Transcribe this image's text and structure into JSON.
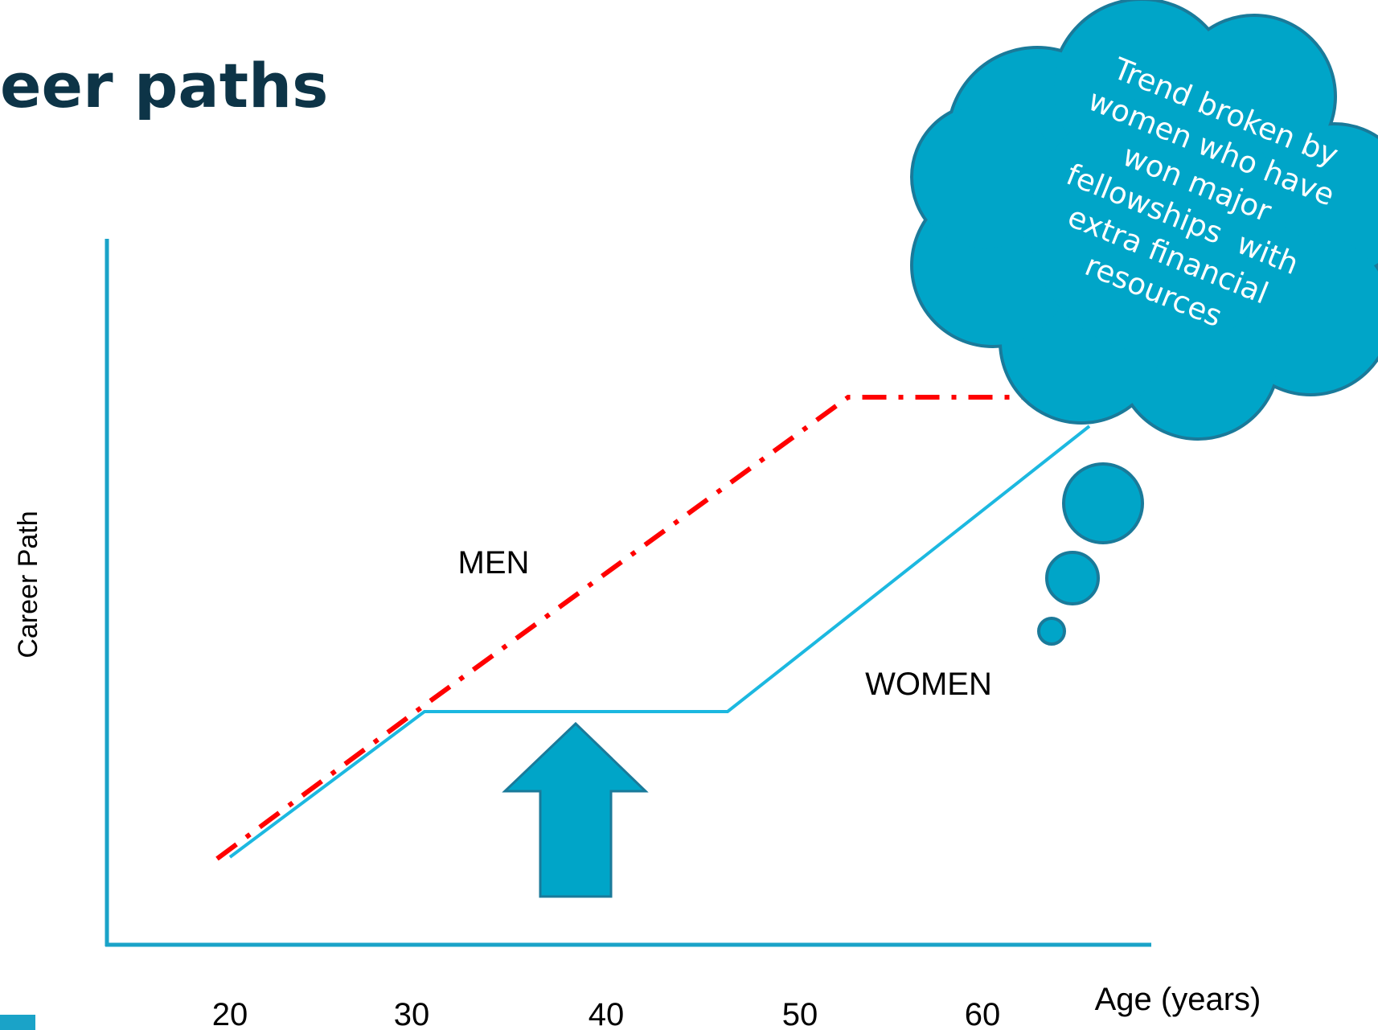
{
  "header": {
    "title": "eer paths"
  },
  "diagram": {
    "y_axis_label": "Career Path",
    "x_axis_label": "Age (years)",
    "x_ticks": [
      "20",
      "30",
      "40",
      "50",
      "60"
    ],
    "men_label": "MEN",
    "women_label": "WOMEN",
    "callout": {
      "lines": [
        "Trend broken by",
        "women who have",
        "won major",
        "fellowships  with",
        "extra financial",
        "resources"
      ]
    }
  }
}
